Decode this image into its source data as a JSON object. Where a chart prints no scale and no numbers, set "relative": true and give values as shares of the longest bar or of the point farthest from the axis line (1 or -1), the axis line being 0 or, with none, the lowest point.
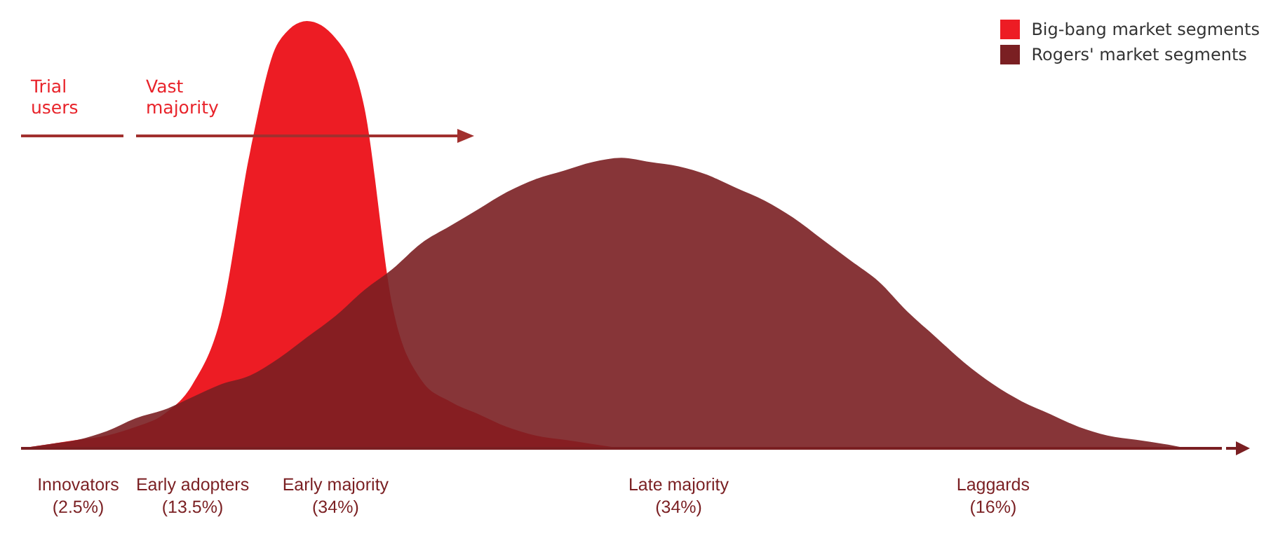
{
  "chart_data": {
    "type": "area",
    "relative": true,
    "legend": "top right",
    "grid": false,
    "categories": [
      null,
      null,
      "Innovators\n(2.5%)",
      null,
      null,
      null,
      "Early adopters\n(13.5%)",
      null,
      null,
      null,
      null,
      "Early majority\n(34%)",
      null,
      null,
      null,
      null,
      null,
      null,
      null,
      null,
      null,
      null,
      null,
      "Late majority\n(34%)",
      null,
      null,
      null,
      null,
      null,
      null,
      null,
      null,
      null,
      null,
      "Laggards\n(16%)",
      null,
      null,
      null,
      null,
      null,
      null,
      null,
      null
    ],
    "series": [
      {
        "name": "Big-bang market segments",
        "color": "#ed1c24",
        "values": [
          0,
          0.01,
          0.02,
          0.03,
          0.05,
          0.08,
          0.15,
          0.31,
          0.69,
          0.95,
          1,
          0.96,
          0.8,
          0.33,
          0.16,
          0.11,
          0.08,
          0.05,
          0.03,
          0.02,
          0.01,
          0,
          null,
          null,
          null,
          null,
          null,
          null,
          null,
          null,
          null,
          null,
          null,
          null,
          null,
          null,
          null,
          null,
          null,
          null,
          null,
          null,
          null
        ]
      },
      {
        "name": "Rogers' market segments",
        "color": "#7a1f22",
        "values": [
          0,
          0.01,
          0.02,
          0.04,
          0.07,
          0.09,
          0.12,
          0.15,
          0.17,
          0.21,
          0.26,
          0.31,
          0.37,
          0.42,
          0.48,
          0.52,
          0.56,
          0.6,
          0.63,
          0.65,
          0.67,
          0.68,
          0.67,
          0.66,
          0.64,
          0.61,
          0.58,
          0.54,
          0.49,
          0.44,
          0.39,
          0.32,
          0.26,
          0.2,
          0.15,
          0.11,
          0.08,
          0.05,
          0.03,
          0.02,
          0.01,
          0,
          0
        ]
      }
    ],
    "annotations": [
      "Trial\nusers",
      "Vast\nmajority"
    ]
  }
}
